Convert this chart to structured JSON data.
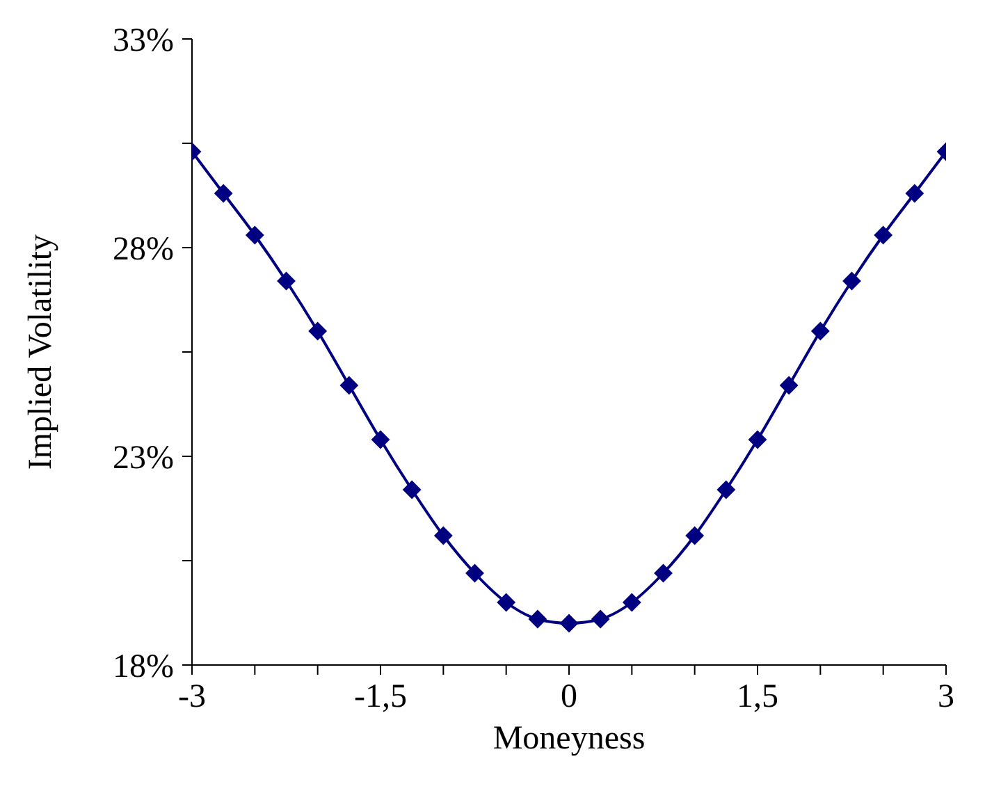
{
  "chart_data": {
    "type": "line",
    "xlabel": "Moneyness",
    "ylabel": "Implied Volatility",
    "x": [
      -3,
      -2.75,
      -2.5,
      -2.25,
      -2,
      -1.75,
      -1.5,
      -1.25,
      -1,
      -0.75,
      -0.5,
      -0.25,
      0,
      0.25,
      0.5,
      0.75,
      1,
      1.25,
      1.5,
      1.75,
      2,
      2.25,
      2.5,
      2.75,
      3
    ],
    "series": [
      {
        "color": "#000080",
        "values": [
          30.3,
          29.3,
          28.3,
          27.2,
          26.0,
          24.7,
          23.4,
          22.2,
          21.1,
          20.2,
          19.5,
          19.1,
          19.0,
          19.1,
          19.5,
          20.2,
          21.1,
          22.2,
          23.4,
          24.7,
          26.0,
          27.2,
          28.3,
          29.3,
          30.3
        ]
      }
    ],
    "xlim": [
      -3,
      3
    ],
    "xticks": [
      {
        "value": -3,
        "label": "-3"
      },
      {
        "value": -2.5,
        "label": null
      },
      {
        "value": -2,
        "label": null
      },
      {
        "value": -1.5,
        "label": "-1,5"
      },
      {
        "value": -1,
        "label": null
      },
      {
        "value": -0.5,
        "label": null
      },
      {
        "value": 0,
        "label": "0"
      },
      {
        "value": 0.5,
        "label": null
      },
      {
        "value": 1,
        "label": null
      },
      {
        "value": 1.5,
        "label": "1,5"
      },
      {
        "value": 2,
        "label": null
      },
      {
        "value": 2.5,
        "label": null
      },
      {
        "value": 3,
        "label": "3"
      }
    ],
    "ylim": [
      18,
      33
    ],
    "yticks": [
      {
        "value": 18,
        "label": "18%"
      },
      {
        "value": 20.5,
        "label": null
      },
      {
        "value": 23,
        "label": "23%"
      },
      {
        "value": 25.5,
        "label": null
      },
      {
        "value": 28,
        "label": "28%"
      },
      {
        "value": 30.5,
        "label": null
      },
      {
        "value": 33,
        "label": "33%"
      }
    ],
    "grid": false,
    "legend": false,
    "marker": "diamond",
    "line_style": "solid"
  }
}
